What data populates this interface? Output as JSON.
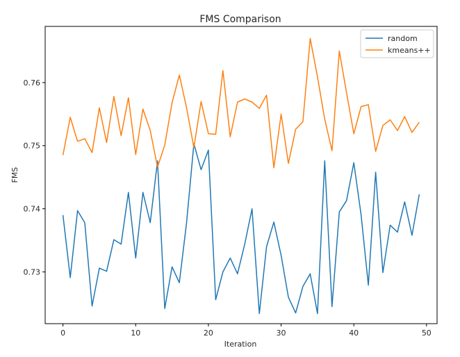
{
  "chart_data": {
    "type": "line",
    "title": "FMS Comparison",
    "xlabel": "Iteration",
    "ylabel": "FMS",
    "xlim": [
      -2.45,
      51.45
    ],
    "ylim": [
      0.7218,
      0.7689
    ],
    "xticks": [
      0,
      10,
      20,
      30,
      40,
      50
    ],
    "yticks": [
      0.73,
      0.74,
      0.75,
      0.76
    ],
    "ytick_labels": [
      "0.73",
      "0.74",
      "0.75",
      "0.76"
    ],
    "grid": false,
    "legend": "top-right",
    "x": [
      0,
      1,
      2,
      3,
      4,
      5,
      6,
      7,
      8,
      9,
      10,
      11,
      12,
      13,
      14,
      15,
      16,
      17,
      18,
      19,
      20,
      21,
      22,
      23,
      24,
      25,
      26,
      27,
      28,
      29,
      30,
      31,
      32,
      33,
      34,
      35,
      36,
      37,
      38,
      39,
      40,
      41,
      42,
      43,
      44,
      45,
      46,
      47,
      48,
      49
    ],
    "series": [
      {
        "name": "random",
        "color": "#1f77b4",
        "values": [
          0.739,
          0.7291,
          0.7397,
          0.7378,
          0.7246,
          0.7306,
          0.7301,
          0.7351,
          0.7344,
          0.7426,
          0.7322,
          0.7426,
          0.7378,
          0.7476,
          0.7242,
          0.7308,
          0.7283,
          0.7378,
          0.7503,
          0.7462,
          0.7493,
          0.7256,
          0.73,
          0.7322,
          0.7297,
          0.7344,
          0.74,
          0.7234,
          0.734,
          0.7379,
          0.7326,
          0.726,
          0.7235,
          0.7277,
          0.7297,
          0.7234,
          0.7476,
          0.7245,
          0.7395,
          0.7413,
          0.7473,
          0.739,
          0.7279,
          0.7458,
          0.7299,
          0.7374,
          0.7363,
          0.7411,
          0.7358,
          0.7423
        ]
      },
      {
        "name": "kmeans++",
        "color": "#ff7f0e",
        "values": [
          0.7485,
          0.7545,
          0.7507,
          0.7511,
          0.7489,
          0.756,
          0.7505,
          0.7578,
          0.7516,
          0.7576,
          0.7486,
          0.7558,
          0.7524,
          0.7466,
          0.7501,
          0.7568,
          0.7612,
          0.756,
          0.7497,
          0.757,
          0.7519,
          0.7518,
          0.7619,
          0.7514,
          0.7569,
          0.7574,
          0.7569,
          0.7559,
          0.758,
          0.7465,
          0.755,
          0.7472,
          0.7526,
          0.7538,
          0.767,
          0.7609,
          0.7542,
          0.7492,
          0.765,
          0.7584,
          0.7519,
          0.7562,
          0.7565,
          0.7491,
          0.7532,
          0.7541,
          0.7524,
          0.7546,
          0.7521,
          0.7537
        ]
      }
    ]
  }
}
